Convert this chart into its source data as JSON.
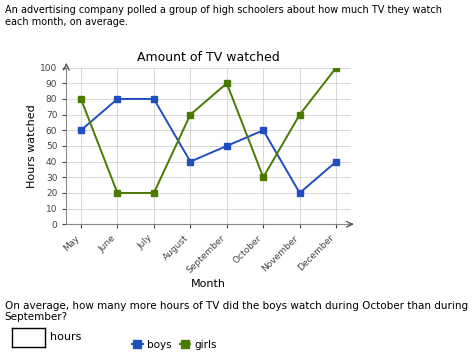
{
  "title": "Amount of TV watched",
  "xlabel": "Month",
  "ylabel": "Hours watched",
  "months": [
    "May",
    "June",
    "July",
    "August",
    "September",
    "October",
    "November",
    "December"
  ],
  "boys": [
    60,
    80,
    80,
    40,
    50,
    60,
    20,
    40
  ],
  "girls": [
    80,
    20,
    20,
    70,
    90,
    30,
    70,
    100
  ],
  "boys_color": "#1f4fbf",
  "girls_color": "#4a7a00",
  "ylim": [
    0,
    100
  ],
  "yticks": [
    0,
    10,
    20,
    30,
    40,
    50,
    60,
    70,
    80,
    90,
    100
  ],
  "background_color": "#ffffff",
  "grid_color": "#c8c8c8",
  "question_text": "On average, how many more hours of TV did the boys watch during October than during\nSeptember?",
  "answer_label": "hours",
  "intro_text": "An advertising company polled a group of high schoolers about how much TV they watch\neach month, on average."
}
